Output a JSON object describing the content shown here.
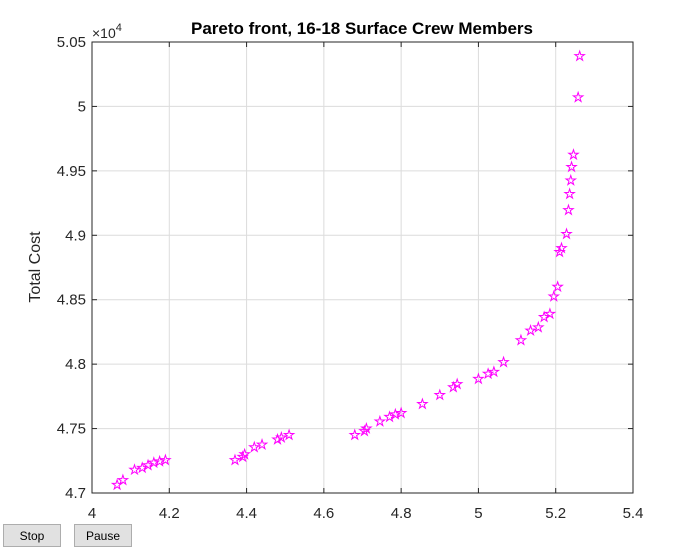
{
  "chart_data": {
    "type": "scatter",
    "title": "Pareto front, 16-18 Surface Crew Members",
    "xlabel": "",
    "ylabel": "Total Cost",
    "xlim": [
      4,
      5.4
    ],
    "ylim": [
      47000,
      50500
    ],
    "xticks": [
      4,
      4.2,
      4.4,
      4.6,
      4.8,
      5,
      5.2,
      5.4
    ],
    "xtick_labels": [
      "4",
      "4.2",
      "4.4",
      "4.6",
      "4.8",
      "5",
      "5.2",
      "5.4"
    ],
    "yticks": [
      47000,
      47500,
      48000,
      48500,
      49000,
      49500,
      50000,
      50500
    ],
    "ytick_labels": [
      "4.7",
      "4.75",
      "4.8",
      "4.85",
      "4.9",
      "4.95",
      "5",
      "5.05"
    ],
    "y_exponent_label": "×10",
    "y_exponent_power": "4",
    "grid": true,
    "marker": "pentagram",
    "marker_color": "#ff00ff",
    "points": [
      {
        "x": 4.065,
        "y": 47063
      },
      {
        "x": 4.08,
        "y": 47100
      },
      {
        "x": 4.11,
        "y": 47180
      },
      {
        "x": 4.13,
        "y": 47195
      },
      {
        "x": 4.145,
        "y": 47215
      },
      {
        "x": 4.16,
        "y": 47235
      },
      {
        "x": 4.175,
        "y": 47245
      },
      {
        "x": 4.19,
        "y": 47255
      },
      {
        "x": 4.37,
        "y": 47255
      },
      {
        "x": 4.39,
        "y": 47280
      },
      {
        "x": 4.395,
        "y": 47300
      },
      {
        "x": 4.42,
        "y": 47355
      },
      {
        "x": 4.44,
        "y": 47375
      },
      {
        "x": 4.48,
        "y": 47415
      },
      {
        "x": 4.49,
        "y": 47430
      },
      {
        "x": 4.51,
        "y": 47450
      },
      {
        "x": 4.68,
        "y": 47450
      },
      {
        "x": 4.705,
        "y": 47480
      },
      {
        "x": 4.71,
        "y": 47500
      },
      {
        "x": 4.745,
        "y": 47555
      },
      {
        "x": 4.77,
        "y": 47590
      },
      {
        "x": 4.785,
        "y": 47610
      },
      {
        "x": 4.8,
        "y": 47620
      },
      {
        "x": 4.855,
        "y": 47690
      },
      {
        "x": 4.9,
        "y": 47760
      },
      {
        "x": 4.935,
        "y": 47820
      },
      {
        "x": 4.945,
        "y": 47845
      },
      {
        "x": 5.0,
        "y": 47885
      },
      {
        "x": 5.025,
        "y": 47925
      },
      {
        "x": 5.04,
        "y": 47940
      },
      {
        "x": 5.065,
        "y": 48015
      },
      {
        "x": 5.11,
        "y": 48185
      },
      {
        "x": 5.135,
        "y": 48260
      },
      {
        "x": 5.155,
        "y": 48285
      },
      {
        "x": 5.17,
        "y": 48365
      },
      {
        "x": 5.185,
        "y": 48390
      },
      {
        "x": 5.195,
        "y": 48525
      },
      {
        "x": 5.205,
        "y": 48600
      },
      {
        "x": 5.21,
        "y": 48870
      },
      {
        "x": 5.215,
        "y": 48900
      },
      {
        "x": 5.228,
        "y": 49010
      },
      {
        "x": 5.233,
        "y": 49195
      },
      {
        "x": 5.236,
        "y": 49320
      },
      {
        "x": 5.239,
        "y": 49425
      },
      {
        "x": 5.241,
        "y": 49530
      },
      {
        "x": 5.246,
        "y": 49625
      },
      {
        "x": 5.258,
        "y": 50070
      },
      {
        "x": 5.262,
        "y": 50390
      }
    ]
  },
  "controls": {
    "stop_label": "Stop",
    "pause_label": "Pause"
  }
}
